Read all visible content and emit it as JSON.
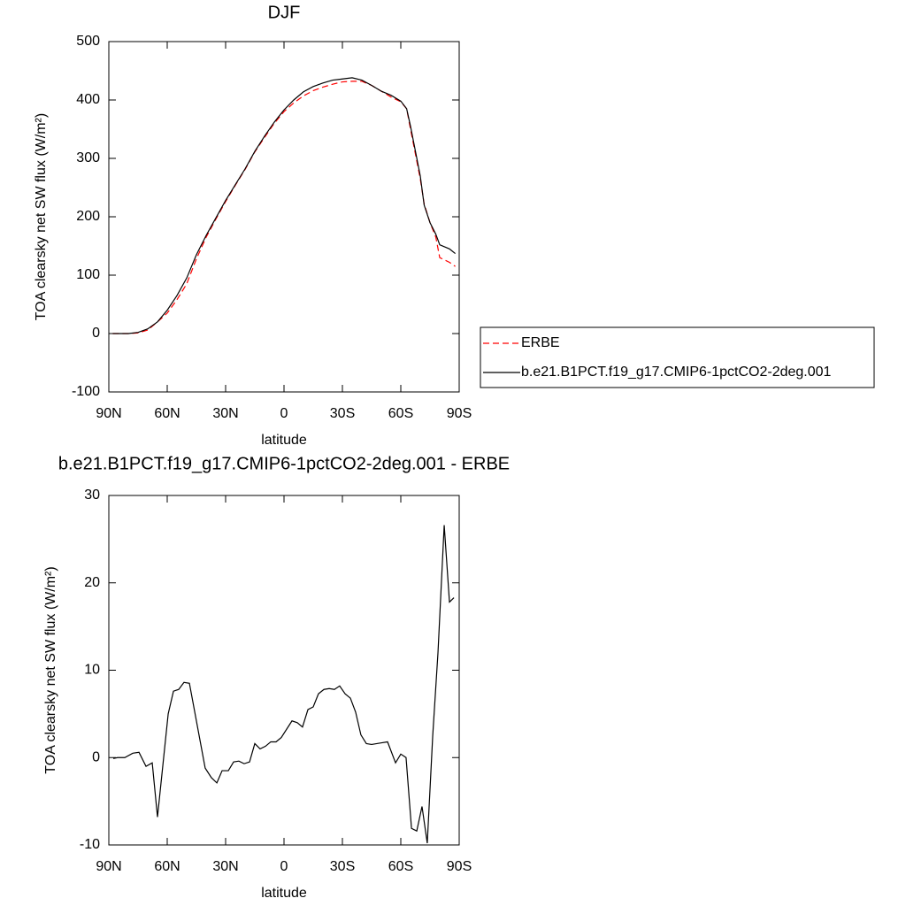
{
  "chart_data": [
    {
      "type": "line",
      "title": "DJF",
      "xlabel": "latitude",
      "ylabel": "TOA clearsky net SW flux (W/m²)",
      "x": [
        88,
        85,
        80,
        75,
        70,
        65,
        60,
        55,
        50,
        45,
        40,
        35,
        30,
        25,
        20,
        15,
        10,
        5,
        0,
        -5,
        -10,
        -15,
        -20,
        -25,
        -30,
        -35,
        -40,
        -45,
        -50,
        -55,
        -60,
        -63,
        -65,
        -70,
        -72,
        -75,
        -78,
        -80,
        -85,
        -88
      ],
      "series": [
        {
          "name": "ERBE",
          "color": "#ff0000",
          "dashed": true,
          "values": [
            0,
            0,
            0,
            1,
            6,
            20,
            35,
            58,
            85,
            128,
            165,
            196,
            226,
            254,
            281,
            311,
            336,
            360,
            380,
            395,
            407,
            416,
            422,
            427,
            431,
            432,
            432,
            425,
            415,
            405,
            397,
            385,
            350,
            265,
            222,
            190,
            165,
            130,
            122,
            115
          ]
        },
        {
          "name": "b.e21.B1PCT.f19_g17.CMIP6-1pctCO2-2deg.001",
          "color": "#000000",
          "dashed": false,
          "values": [
            0,
            0,
            0,
            2,
            8,
            20,
            40,
            65,
            95,
            135,
            168,
            198,
            228,
            255,
            282,
            312,
            338,
            362,
            383,
            400,
            414,
            423,
            429,
            434,
            436,
            438,
            434,
            425,
            415,
            408,
            398,
            385,
            355,
            270,
            220,
            190,
            170,
            152,
            145,
            137
          ]
        }
      ],
      "xlim": [
        90,
        -90
      ],
      "xticks": [
        {
          "value": 90,
          "label": "90N"
        },
        {
          "value": 60,
          "label": "60N"
        },
        {
          "value": 30,
          "label": "30N"
        },
        0,
        {
          "value": -30,
          "label": "30S"
        },
        {
          "value": -60,
          "label": "60S"
        },
        {
          "value": -90,
          "label": "90S"
        }
      ],
      "ylim": [
        -100,
        500
      ],
      "yticks": [
        -100,
        0,
        100,
        200,
        300,
        400,
        500
      ]
    },
    {
      "type": "line",
      "title": "b.e21.B1PCT.f19_g17.CMIP6-1pctCO2-2deg.001 - ERBE",
      "xlabel": "latitude",
      "ylabel": "TOA clearsky net SW flux (W/m²)",
      "x": [
        87.7,
        85.5,
        81.8,
        77.7,
        74.5,
        70.9,
        67.7,
        65,
        59.5,
        56.8,
        54.1,
        51.4,
        48.6,
        40.5,
        37.3,
        34.5,
        31.8,
        28.6,
        25.9,
        23.2,
        20.5,
        17.7,
        15,
        12.3,
        9.5,
        6.8,
        4.1,
        1.4,
        -4.1,
        -6.8,
        -9.5,
        -12.3,
        -15,
        -17.7,
        -20.5,
        -23.2,
        -25.9,
        -28.6,
        -31.4,
        -34.1,
        -36.8,
        -39.5,
        -42.3,
        -45,
        -50.5,
        -53.2,
        -57.3,
        -60,
        -62.7,
        -65.5,
        -68.2,
        -70.9,
        -73.6,
        -76.4,
        -79.1,
        -82.3,
        -85,
        -87.3
      ],
      "series": [
        {
          "color": "#000000",
          "dashed": false,
          "values": [
            -0.1,
            0,
            0,
            0.5,
            0.6,
            -1,
            -0.6,
            -6.8,
            5,
            7.6,
            7.8,
            8.6,
            8.5,
            -1.2,
            -2.3,
            -2.9,
            -1.5,
            -1.5,
            -0.5,
            -0.4,
            -0.7,
            -0.5,
            1.6,
            1,
            1.3,
            1.8,
            1.8,
            2.3,
            4.2,
            4,
            3.5,
            5.5,
            5.8,
            7.3,
            7.8,
            7.9,
            7.8,
            8.2,
            7.3,
            6.8,
            5.2,
            2.6,
            1.6,
            1.5,
            1.7,
            1.8,
            -0.6,
            0.4,
            0,
            -8.1,
            -8.4,
            -5.6,
            -9.8,
            2.5,
            12,
            26.6,
            17.8,
            18.3
          ]
        }
      ],
      "xlim": [
        90,
        -90
      ],
      "xticks": [
        {
          "value": 90,
          "label": "90N"
        },
        {
          "value": 60,
          "label": "60N"
        },
        {
          "value": 30,
          "label": "30N"
        },
        0,
        {
          "value": -30,
          "label": "30S"
        },
        {
          "value": -60,
          "label": "60S"
        },
        {
          "value": -90,
          "label": "90S"
        }
      ],
      "ylim": [
        -10,
        30
      ],
      "yticks": [
        -10,
        0,
        10,
        20,
        30
      ]
    }
  ]
}
